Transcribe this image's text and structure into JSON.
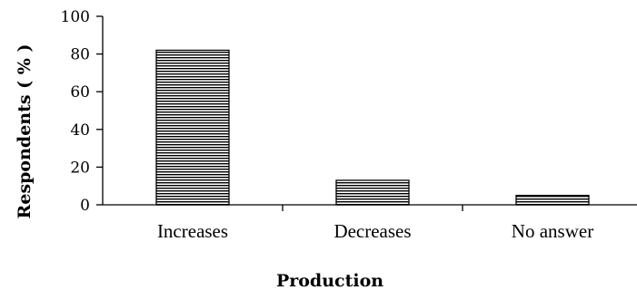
{
  "chart_data": {
    "type": "bar",
    "categories": [
      "Increases",
      "Decreases",
      "No answer"
    ],
    "values": [
      82,
      13,
      5
    ],
    "xlabel": "Production",
    "ylabel": "Respondents ( % )",
    "ylim": [
      0,
      100
    ],
    "yticks": [
      0,
      20,
      40,
      60,
      80,
      100
    ],
    "grid": false,
    "legend": "none",
    "bar_fill": "#ffffff",
    "bar_hatch_color": "#000000",
    "bar_pattern": "horizontal-stripes"
  }
}
